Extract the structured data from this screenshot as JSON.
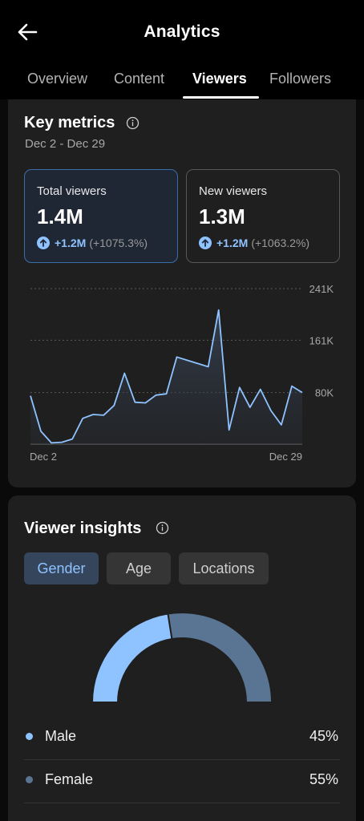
{
  "header": {
    "title": "Analytics",
    "back_icon": "arrow-left-icon"
  },
  "tabs": [
    {
      "label": "Overview",
      "active": false
    },
    {
      "label": "Content",
      "active": false
    },
    {
      "label": "Viewers",
      "active": true
    },
    {
      "label": "Followers",
      "active": false
    }
  ],
  "key_metrics": {
    "title": "Key metrics",
    "date_range": "Dec 2 - Dec 29",
    "cards": [
      {
        "label": "Total viewers",
        "value": "1.4M",
        "change": "+1.2M",
        "change_pct": "(+1075.3%)",
        "selected": true
      },
      {
        "label": "New viewers",
        "value": "1.3M",
        "change": "+1.2M",
        "change_pct": "(+1063.2%)",
        "selected": false
      }
    ]
  },
  "chart_data": {
    "type": "area",
    "x_start_label": "Dec 2",
    "x_end_label": "Dec 29",
    "y_ticks": [
      {
        "value": 241000,
        "label": "241K"
      },
      {
        "value": 161000,
        "label": "161K"
      },
      {
        "value": 80000,
        "label": "80K"
      }
    ],
    "ylim": [
      0,
      241000
    ],
    "values": [
      75000,
      20000,
      2000,
      3000,
      8000,
      40000,
      46000,
      45000,
      60000,
      110000,
      65000,
      64000,
      76000,
      78000,
      135000,
      130000,
      125000,
      120000,
      208000,
      22000,
      88000,
      57000,
      85000,
      52000,
      30000,
      90000,
      80000
    ],
    "line_color": "#8fc3ff"
  },
  "viewer_insights": {
    "title": "Viewer insights",
    "segments": [
      {
        "label": "Gender",
        "active": true
      },
      {
        "label": "Age",
        "active": false
      },
      {
        "label": "Locations",
        "active": false
      }
    ],
    "gender": [
      {
        "label": "Male",
        "value": "45%",
        "share": 45,
        "color": "#8fc3ff"
      },
      {
        "label": "Female",
        "value": "55%",
        "share": 55,
        "color": "#5a7594"
      }
    ]
  }
}
